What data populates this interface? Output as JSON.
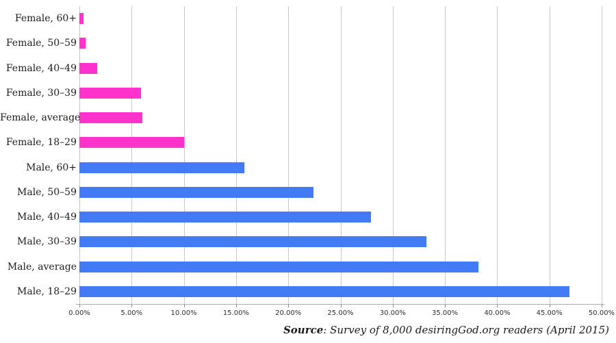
{
  "chart_data": {
    "type": "bar",
    "orientation": "horizontal",
    "title": "",
    "xlabel": "",
    "ylabel": "",
    "categories": [
      "Female, 60+",
      "Female, 50–59",
      "Female, 40–49",
      "Female, 30–39",
      "Female, average",
      "Female, 18–29",
      "Male, 60+",
      "Male, 50–59",
      "Male, 40–49",
      "Male, 30–39",
      "Male, average",
      "Male, 18–29"
    ],
    "values": [
      0.4,
      0.6,
      1.7,
      5.9,
      6.0,
      10.0,
      15.8,
      22.4,
      27.9,
      33.2,
      38.2,
      46.9
    ],
    "value_unit": "%",
    "groups": [
      "female",
      "female",
      "female",
      "female",
      "female",
      "female",
      "male",
      "male",
      "male",
      "male",
      "male",
      "male"
    ],
    "group_colors": {
      "female": "#ff33cc",
      "male": "#427bf5"
    },
    "xlim": [
      0,
      50
    ],
    "x_tick_step": 5,
    "x_tick_labels": [
      "0.00%",
      "5.00%",
      "10.00%",
      "15.00%",
      "20.00%",
      "25.00%",
      "30.00%",
      "35.00%",
      "40.00%",
      "45.00%",
      "50.00%"
    ],
    "grid": true,
    "legend": false
  },
  "colors": {
    "gridline": "#c9c9c9",
    "axis_line": "#adadad",
    "tick_mark": "#8f8f8f",
    "label_text": "#1c1c1c",
    "tick_text": "#2e2e2e"
  },
  "source_note": {
    "label": "Source",
    "text": ": Survey of 8,000 desiringGod.org readers (April 2015)"
  }
}
